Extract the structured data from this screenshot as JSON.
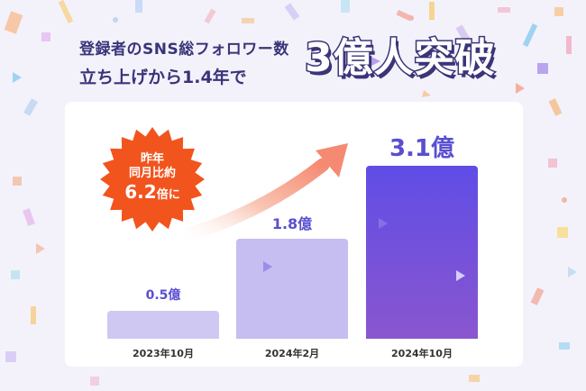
{
  "headline": {
    "line1": "登録者のSNS総フォロワー数",
    "line2": "立ち上げから1.4年で",
    "big": "3億人突破"
  },
  "badge": {
    "line1": "昨年",
    "line2": "同月比約",
    "ratio": "6.2",
    "suffix": "倍に",
    "color": "#f2541d"
  },
  "chart_data": {
    "type": "bar",
    "categories": [
      "2023年10月",
      "2024年2月",
      "2024年10月"
    ],
    "values": [
      0.5,
      1.8,
      3.1
    ],
    "value_labels": [
      "0.5億",
      "1.8億",
      "3.1億"
    ],
    "ylim": [
      0,
      3.1
    ],
    "colors": [
      "#cfc8f2",
      "#c6bdf1",
      "#6a4fe0"
    ]
  }
}
